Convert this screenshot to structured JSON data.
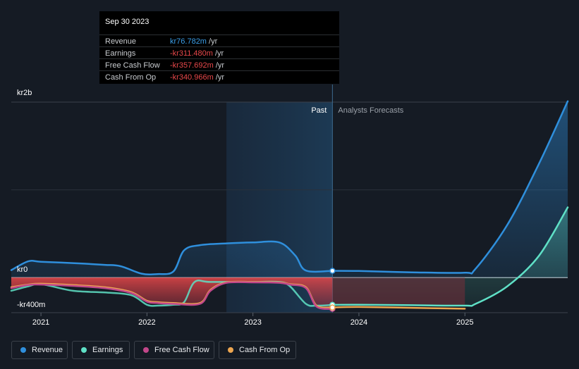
{
  "tooltip": {
    "date": "Sep 30 2023",
    "rows": [
      {
        "label": "Revenue",
        "value": "kr76.782m",
        "unit": " /yr",
        "color": "#3b9ee8"
      },
      {
        "label": "Earnings",
        "value": "-kr311.480m",
        "unit": " /yr",
        "color": "#e8484a"
      },
      {
        "label": "Free Cash Flow",
        "value": "-kr357.692m",
        "unit": " /yr",
        "color": "#e8484a"
      },
      {
        "label": "Cash From Op",
        "value": "-kr340.966m",
        "unit": " /yr",
        "color": "#e8484a"
      }
    ]
  },
  "labels": {
    "past": "Past",
    "forecast": "Analysts Forecasts"
  },
  "colors": {
    "revenue": "#2f8fdc",
    "earnings": "#5fe0c6",
    "free_cash_flow": "#c2478a",
    "cash_from_op": "#eda650",
    "background": "#151b24"
  },
  "chart_data": {
    "type": "line",
    "y_unit": "kr",
    "ylim": [
      -400,
      2000
    ],
    "yticks": [
      {
        "value": 2000,
        "label": "kr2b"
      },
      {
        "value": 0,
        "label": "kr0"
      },
      {
        "value": -400,
        "label": "-kr400m"
      }
    ],
    "xlim": [
      2020.72,
      2025.97
    ],
    "xticks": [
      {
        "value": 2021,
        "label": "2021"
      },
      {
        "value": 2022,
        "label": "2022"
      },
      {
        "value": 2023,
        "label": "2023"
      },
      {
        "value": 2024,
        "label": "2024"
      },
      {
        "value": 2025,
        "label": "2025"
      }
    ],
    "past_until": 2023.75,
    "highlight_from": 2022.75,
    "series": [
      {
        "name": "Revenue",
        "color": "#2f8fdc",
        "points": [
          [
            2020.72,
            85
          ],
          [
            2020.88,
            185
          ],
          [
            2021.0,
            180
          ],
          [
            2021.3,
            165
          ],
          [
            2021.6,
            145
          ],
          [
            2021.75,
            130
          ],
          [
            2021.95,
            45
          ],
          [
            2022.1,
            40
          ],
          [
            2022.25,
            70
          ],
          [
            2022.35,
            310
          ],
          [
            2022.5,
            370
          ],
          [
            2022.75,
            390
          ],
          [
            2023.0,
            400
          ],
          [
            2023.25,
            400
          ],
          [
            2023.4,
            250
          ],
          [
            2023.5,
            80
          ],
          [
            2023.75,
            77
          ],
          [
            2024.0,
            75
          ],
          [
            2024.5,
            60
          ],
          [
            2025.0,
            55
          ],
          [
            2025.1,
            100
          ],
          [
            2025.4,
            600
          ],
          [
            2025.7,
            1300
          ],
          [
            2025.97,
            2010
          ]
        ]
      },
      {
        "name": "Earnings",
        "color": "#5fe0c6",
        "points": [
          [
            2020.72,
            -150
          ],
          [
            2020.88,
            -100
          ],
          [
            2021.0,
            -75
          ],
          [
            2021.3,
            -150
          ],
          [
            2021.6,
            -170
          ],
          [
            2021.85,
            -200
          ],
          [
            2022.0,
            -310
          ],
          [
            2022.1,
            -320
          ],
          [
            2022.25,
            -310
          ],
          [
            2022.35,
            -280
          ],
          [
            2022.45,
            -50
          ],
          [
            2022.6,
            -50
          ],
          [
            2023.0,
            -50
          ],
          [
            2023.25,
            -50
          ],
          [
            2023.35,
            -100
          ],
          [
            2023.5,
            -300
          ],
          [
            2023.6,
            -320
          ],
          [
            2023.75,
            -311
          ],
          [
            2024.0,
            -310
          ],
          [
            2024.5,
            -315
          ],
          [
            2025.0,
            -320
          ],
          [
            2025.1,
            -300
          ],
          [
            2025.4,
            -100
          ],
          [
            2025.7,
            250
          ],
          [
            2025.97,
            800
          ]
        ]
      },
      {
        "name": "Free Cash Flow",
        "color": "#c2478a",
        "points": [
          [
            2020.72,
            -120
          ],
          [
            2020.88,
            -85
          ],
          [
            2021.0,
            -80
          ],
          [
            2021.3,
            -95
          ],
          [
            2021.6,
            -120
          ],
          [
            2021.85,
            -175
          ],
          [
            2022.0,
            -275
          ],
          [
            2022.1,
            -290
          ],
          [
            2022.25,
            -300
          ],
          [
            2022.5,
            -300
          ],
          [
            2022.6,
            -150
          ],
          [
            2022.75,
            -60
          ],
          [
            2023.0,
            -55
          ],
          [
            2023.25,
            -60
          ],
          [
            2023.35,
            -80
          ],
          [
            2023.5,
            -120
          ],
          [
            2023.6,
            -330
          ],
          [
            2023.75,
            -357
          ]
        ]
      },
      {
        "name": "Cash From Op",
        "color": "#eda650",
        "points": [
          [
            2020.72,
            -110
          ],
          [
            2020.88,
            -80
          ],
          [
            2021.0,
            -70
          ],
          [
            2021.3,
            -85
          ],
          [
            2021.6,
            -110
          ],
          [
            2021.85,
            -165
          ],
          [
            2022.0,
            -265
          ],
          [
            2022.1,
            -280
          ],
          [
            2022.25,
            -290
          ],
          [
            2022.5,
            -290
          ],
          [
            2022.6,
            -140
          ],
          [
            2022.75,
            -55
          ],
          [
            2023.0,
            -50
          ],
          [
            2023.25,
            -55
          ],
          [
            2023.35,
            -75
          ],
          [
            2023.5,
            -110
          ],
          [
            2023.6,
            -320
          ],
          [
            2023.75,
            -341
          ],
          [
            2024.0,
            -335
          ],
          [
            2024.5,
            -345
          ],
          [
            2025.0,
            -355
          ]
        ]
      }
    ],
    "markers": [
      {
        "series": "Revenue",
        "x": 2023.75,
        "y": 77
      },
      {
        "series": "Earnings",
        "x": 2023.75,
        "y": -311
      },
      {
        "series": "Free Cash Flow",
        "x": 2023.75,
        "y": -357
      },
      {
        "series": "Cash From Op",
        "x": 2023.75,
        "y": -341
      }
    ]
  },
  "legend": [
    {
      "label": "Revenue",
      "color": "#2f8fdc"
    },
    {
      "label": "Earnings",
      "color": "#5fe0c6"
    },
    {
      "label": "Free Cash Flow",
      "color": "#c2478a"
    },
    {
      "label": "Cash From Op",
      "color": "#eda650"
    }
  ]
}
